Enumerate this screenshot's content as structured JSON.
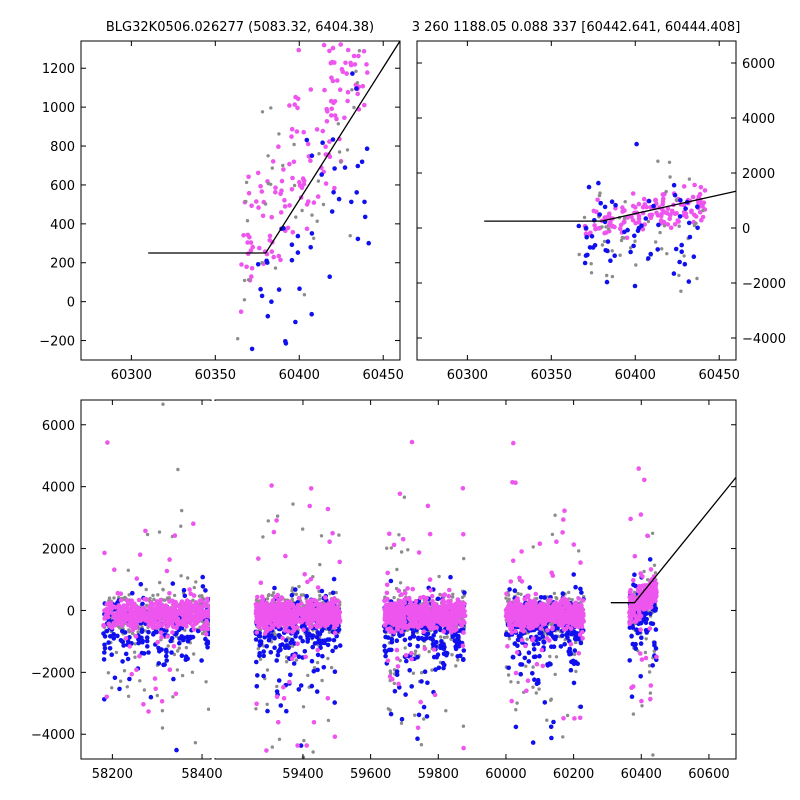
{
  "title_left": "BLG32K0506.026277 (5083.32, 6404.38)",
  "title_right": "3 260 1188.05 0.088 337 [60442.641, 60444.408]",
  "colors": {
    "gray": "#8c8c8c",
    "blue": "#1010ee",
    "magenta": "#ee55ee",
    "line": "#000000"
  },
  "chart_data": [
    {
      "id": "top_left",
      "type": "scatter",
      "xlim": [
        60270,
        60460
      ],
      "ylim": [
        -300,
        1340
      ],
      "xticks": [
        60300,
        60350,
        60400,
        60450
      ],
      "yticks": [
        -200,
        0,
        200,
        400,
        600,
        800,
        1000,
        1200
      ],
      "y_axis_side": "left",
      "model_line": [
        [
          60310,
          250
        ],
        [
          60380,
          250
        ],
        [
          60460,
          1340
        ]
      ],
      "clusters": [
        {
          "color": "magenta",
          "xmin": 60365,
          "xmax": 60442,
          "y0": 200,
          "slope": 14,
          "spread": 220,
          "n": 150
        },
        {
          "color": "gray",
          "xmin": 60362,
          "xmax": 60442,
          "y0": 150,
          "slope": 12,
          "spread": 280,
          "n": 40
        },
        {
          "color": "blue",
          "xmin": 60370,
          "xmax": 60442,
          "y0": 50,
          "slope": 8,
          "spread": 250,
          "n": 45
        }
      ]
    },
    {
      "id": "top_right",
      "type": "scatter",
      "xlim": [
        60270,
        60460
      ],
      "ylim": [
        -4800,
        6800
      ],
      "xticks": [
        60300,
        60350,
        60400,
        60450
      ],
      "yticks": [
        -4000,
        -2000,
        0,
        2000,
        4000,
        6000
      ],
      "y_axis_side": "right",
      "model_line": [
        [
          60310,
          250
        ],
        [
          60380,
          250
        ],
        [
          60460,
          1340
        ]
      ],
      "clusters": [
        {
          "color": "magenta",
          "xmin": 60370,
          "xmax": 60442,
          "y0": 150,
          "slope": 10,
          "spread": 350,
          "n": 140
        },
        {
          "color": "gray",
          "xmin": 60365,
          "xmax": 60442,
          "y0": -100,
          "slope": 5,
          "spread": 1100,
          "n": 50
        },
        {
          "color": "blue",
          "xmin": 60365,
          "xmax": 60442,
          "y0": -300,
          "slope": 6,
          "spread": 900,
          "n": 60
        }
      ]
    },
    {
      "id": "bottom",
      "type": "scatter",
      "xlim": [
        58130,
        60680
      ],
      "ylim": [
        -4800,
        6800
      ],
      "xticks": [
        58200,
        58400,
        59400,
        59600,
        59800,
        60000,
        60200,
        60400,
        60600
      ],
      "yticks": [
        -4000,
        -2000,
        0,
        2000,
        4000,
        6000
      ],
      "y_axis_side": "left",
      "axis_break": {
        "left_xmax": 58420,
        "right_xmin": 59140
      },
      "model_line": [
        [
          60310,
          250
        ],
        [
          60380,
          250
        ],
        [
          60680,
          4300
        ]
      ],
      "seasons": [
        {
          "xmin": 58180,
          "xmax": 58420,
          "n": 350
        },
        {
          "xmin": 59260,
          "xmax": 59510,
          "n": 420
        },
        {
          "xmin": 59640,
          "xmax": 59880,
          "n": 420
        },
        {
          "xmin": 60000,
          "xmax": 60230,
          "n": 420
        },
        {
          "xmin": 60365,
          "xmax": 60445,
          "n": 160
        }
      ]
    }
  ]
}
